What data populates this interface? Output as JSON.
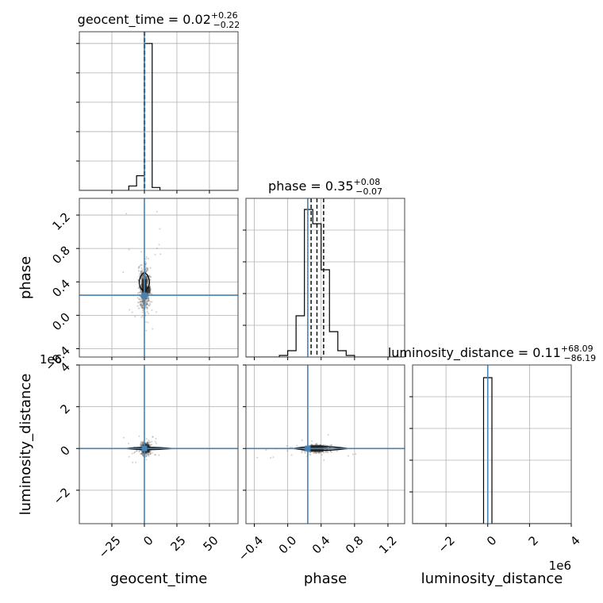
{
  "chart_data": {
    "type": "corner",
    "parameters": [
      {
        "key": "geocent_time",
        "label": "geocent_time",
        "title_name": "geocent_time",
        "title_value": "0.02",
        "title_plus": "+0.26",
        "title_minus": "−0.22",
        "range": [
          -50,
          72
        ],
        "ticks": [
          -25,
          0,
          25,
          50
        ],
        "tick_labels": [
          "−25",
          "0",
          "25",
          "50"
        ],
        "offset_label": "",
        "quantiles": [
          -0.2,
          0.02,
          0.28
        ],
        "truth": 0,
        "hist_edges": [
          -12,
          -6,
          0,
          6,
          12
        ],
        "hist_counts": [
          0.03,
          0.1,
          1.0,
          0.02
        ],
        "hist_ylim": [
          0,
          1.08
        ],
        "hist_yticks": [
          0.2,
          0.4,
          0.6,
          0.8,
          1.0
        ]
      },
      {
        "key": "phase",
        "label": "phase",
        "title_name": "phase",
        "title_value": "0.35",
        "title_plus": "+0.08",
        "title_minus": "−0.07",
        "range": [
          -0.5,
          1.4
        ],
        "ticks": [
          -0.4,
          0.0,
          0.4,
          0.8,
          1.2
        ],
        "tick_labels": [
          "−0.4",
          "0.0",
          "0.4",
          "0.8",
          "1.2"
        ],
        "offset_label": "",
        "quantiles": [
          0.28,
          0.35,
          0.43
        ],
        "truth": 0.24,
        "hist_edges": [
          -0.1,
          0.0,
          0.1,
          0.2,
          0.3,
          0.4,
          0.5,
          0.6,
          0.7,
          0.8
        ],
        "hist_counts": [
          0.01,
          0.04,
          0.26,
          0.93,
          0.84,
          0.55,
          0.16,
          0.04,
          0.01
        ],
        "hist_ylim": [
          0,
          1.0
        ],
        "hist_yticks": [
          0.2,
          0.4,
          0.6,
          0.8
        ]
      },
      {
        "key": "luminosity_distance",
        "label": "luminosity_distance",
        "title_name": "luminosity_distance",
        "title_value": "0.11",
        "title_plus": "+68.09",
        "title_minus": "−86.19",
        "range": [
          -3.6,
          4.0
        ],
        "ticks": [
          -2,
          0,
          2,
          4
        ],
        "tick_labels": [
          "−2",
          "0",
          "2",
          "4"
        ],
        "offset_label": "1e6",
        "quantiles": [
          -8.62e-05,
          1.1e-07,
          6.81e-05
        ],
        "truth": 0,
        "hist_edges": [
          -0.2,
          0.0,
          0.2
        ],
        "hist_counts": [
          0.92,
          0.92
        ],
        "hist_ylim": [
          0,
          1.0
        ],
        "hist_yticks": [
          0.2,
          0.4,
          0.6,
          0.8
        ]
      }
    ],
    "pairs": [
      {
        "x": "geocent_time",
        "y": "phase",
        "truth": [
          0,
          0.24
        ],
        "center": [
          0,
          0.32
        ]
      },
      {
        "x": "geocent_time",
        "y": "luminosity_distance",
        "truth": [
          0,
          0
        ],
        "center": [
          0.8,
          0
        ]
      },
      {
        "x": "phase",
        "y": "luminosity_distance",
        "truth": [
          0.24,
          0
        ],
        "center": [
          0.35,
          0
        ]
      }
    ],
    "colors": {
      "truth": "#4682b4",
      "hist": "#000000",
      "grid": "#b0b0b0",
      "samples": "#555555"
    },
    "grid": true
  }
}
